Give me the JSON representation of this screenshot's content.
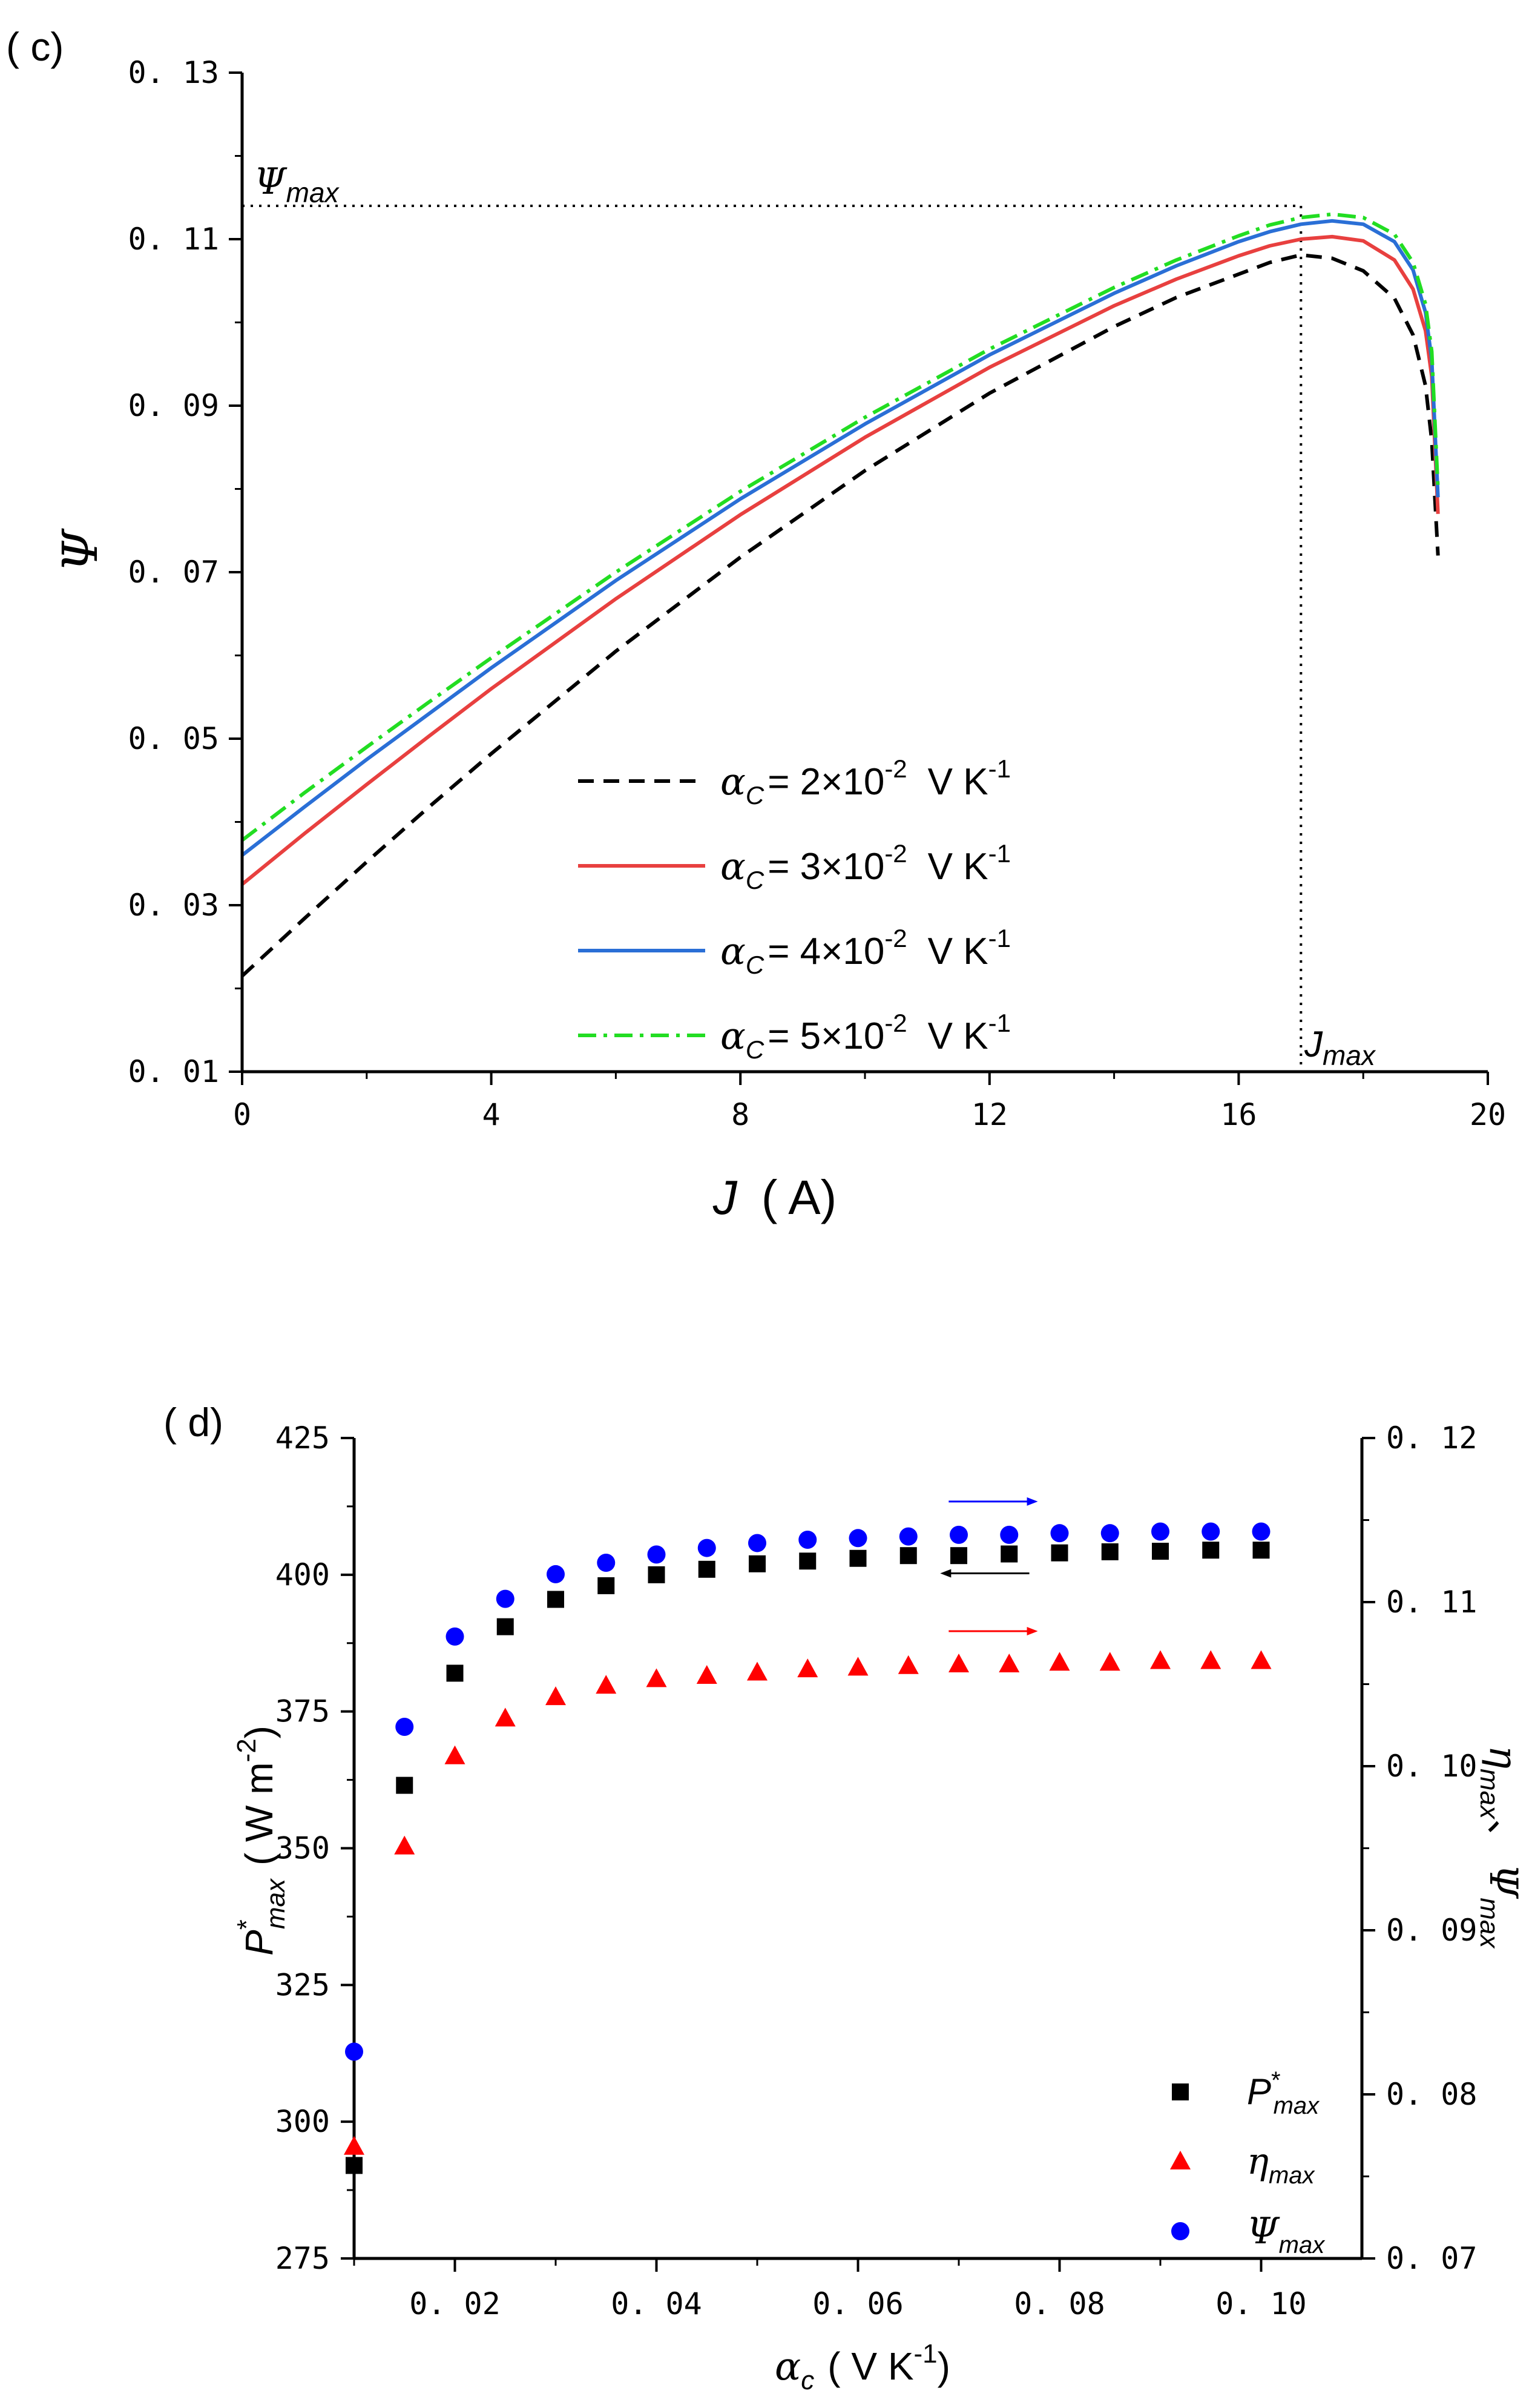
{
  "chart_data": [
    {
      "type": "line",
      "panel": "( c)",
      "title": "",
      "xlabel_sym": "J",
      "xlabel_unit": "( A)",
      "ylabel_sym": "Ψ",
      "xlim": [
        0,
        20
      ],
      "ylim": [
        0.01,
        0.13
      ],
      "xticks": [
        0,
        4,
        8,
        12,
        16,
        20
      ],
      "xtick_labels": [
        "0",
        "4",
        "8",
        "12",
        "16",
        "20"
      ],
      "yticks": [
        0.01,
        0.03,
        0.05,
        0.07,
        0.09,
        0.11,
        0.13
      ],
      "ytick_labels": [
        "0. 01",
        "0. 03",
        "0. 05",
        "0. 07",
        "0. 09",
        "0. 11",
        "0. 13"
      ],
      "annotations": {
        "psi_max": {
          "sym": "Ψ",
          "sub": "max",
          "value": 0.114
        },
        "j_max": {
          "sym": "J",
          "sub": "max",
          "value": 17.0
        }
      },
      "legend_position": "center",
      "series": [
        {
          "name": "α_C = 2×10^-2 V K^-1",
          "sym": "α",
          "sub": "C",
          "text": "= 2×10",
          "exp": "-2",
          "unit": "V K",
          "unit_exp": "-1",
          "color": "#000000",
          "dash": "dash",
          "x": [
            0,
            1,
            2,
            3,
            4,
            6,
            8,
            10,
            12,
            14,
            15,
            16,
            16.5,
            17,
            17.5,
            18,
            18.5,
            18.8,
            19.0,
            19.1,
            19.2
          ],
          "y": [
            0.0215,
            0.0284,
            0.0352,
            0.0418,
            0.0482,
            0.0605,
            0.0718,
            0.0822,
            0.0915,
            0.0995,
            0.103,
            0.1058,
            0.1072,
            0.1081,
            0.1077,
            0.1062,
            0.1029,
            0.0985,
            0.0924,
            0.0858,
            0.072
          ]
        },
        {
          "name": "α_C = 3×10^-2 V K^-1",
          "sym": "α",
          "sub": "C",
          "text": "= 3×10",
          "exp": "-2",
          "unit": "V K",
          "unit_exp": "-1",
          "color": "#e8403f",
          "dash": "solid",
          "x": [
            0,
            1,
            2,
            3,
            4,
            6,
            8,
            10,
            12,
            14,
            15,
            16,
            16.5,
            17,
            17.5,
            18,
            18.5,
            18.8,
            19.0,
            19.1,
            19.2
          ],
          "y": [
            0.0325,
            0.0386,
            0.0445,
            0.0503,
            0.056,
            0.0668,
            0.0769,
            0.0862,
            0.0946,
            0.102,
            0.1052,
            0.108,
            0.1092,
            0.11,
            0.1103,
            0.1098,
            0.1075,
            0.104,
            0.099,
            0.0935,
            0.077
          ]
        },
        {
          "name": "α_C = 4×10^-2 V K^-1",
          "sym": "α",
          "sub": "C",
          "text": "= 4×10",
          "exp": "-2",
          "unit": "V K",
          "unit_exp": "-1",
          "color": "#2a6fd6",
          "dash": "solid",
          "x": [
            0,
            1,
            2,
            3,
            4,
            6,
            8,
            10,
            12,
            14,
            15,
            16,
            16.5,
            17,
            17.5,
            18,
            18.5,
            18.8,
            19.0,
            19.1,
            19.2
          ],
          "y": [
            0.036,
            0.0418,
            0.0475,
            0.053,
            0.0585,
            0.069,
            0.0788,
            0.0878,
            0.0961,
            0.1035,
            0.1068,
            0.1097,
            0.1109,
            0.1118,
            0.1122,
            0.1118,
            0.1097,
            0.1063,
            0.1012,
            0.0955,
            0.079
          ]
        },
        {
          "name": "α_C = 5×10^-2 V K^-1",
          "sym": "α",
          "sub": "C",
          "text": "= 5×10",
          "exp": "-2",
          "unit": "V K",
          "unit_exp": "-1",
          "color": "#22dd22",
          "dash": "dashdot",
          "x": [
            0,
            1,
            2,
            3,
            4,
            6,
            8,
            10,
            12,
            14,
            15,
            16,
            16.5,
            17,
            17.5,
            18,
            18.5,
            18.8,
            19.0,
            19.1,
            19.2
          ],
          "y": [
            0.0378,
            0.0435,
            0.049,
            0.0544,
            0.0597,
            0.07,
            0.0797,
            0.0886,
            0.0968,
            0.1042,
            0.1075,
            0.1104,
            0.1117,
            0.1126,
            0.113,
            0.1126,
            0.1106,
            0.1072,
            0.1022,
            0.0965,
            0.08
          ]
        }
      ]
    },
    {
      "type": "scatter",
      "panel": "( d)",
      "title": "",
      "xlabel_sym": "α",
      "xlabel_sub": "c",
      "xlabel_unit": "( V K",
      "xlabel_unit_exp": "-1",
      "xlabel_close": ")",
      "ylabel_left": {
        "sym": "P",
        "sup": "*",
        "sub": "max",
        "unit": "( W m",
        "unit_exp": "-2",
        "close": ")"
      },
      "ylabel_right": {
        "sym1": "η",
        "sub1": "max",
        "sep": "、",
        "sym2": "Ψ",
        "sub2": "max"
      },
      "xlim": [
        0.01,
        0.11
      ],
      "ylim_left": [
        275,
        425
      ],
      "ylim_right": [
        0.07,
        0.12
      ],
      "xticks": [
        0.02,
        0.04,
        0.06,
        0.08,
        0.1
      ],
      "xtick_labels": [
        "0. 02",
        "0. 04",
        "0. 06",
        "0. 08",
        "0. 10"
      ],
      "yticks_left": [
        275,
        300,
        325,
        350,
        375,
        400,
        425
      ],
      "ytick_labels_left": [
        "275",
        "300",
        "325",
        "350",
        "375",
        "400",
        "425"
      ],
      "yticks_right": [
        0.07,
        0.08,
        0.09,
        0.1,
        0.11,
        0.12
      ],
      "ytick_labels_right": [
        "0. 07",
        "0. 08",
        "0. 09",
        "0. 10",
        "0. 11",
        "0. 12"
      ],
      "legend_position": "bottom-right",
      "x": [
        0.01,
        0.015,
        0.02,
        0.025,
        0.03,
        0.035,
        0.04,
        0.045,
        0.05,
        0.055,
        0.06,
        0.065,
        0.07,
        0.075,
        0.08,
        0.085,
        0.09,
        0.095,
        0.1
      ],
      "series": [
        {
          "name": "P*max",
          "sym": "P",
          "sup": "*",
          "sub": "max",
          "axis": "left",
          "marker": "square",
          "color": "#000000",
          "values": [
            292,
            361.5,
            382,
            390.5,
            395.5,
            398,
            400,
            401,
            402,
            402.5,
            403,
            403.5,
            403.5,
            403.8,
            404,
            404.2,
            404.3,
            404.5,
            404.5
          ]
        },
        {
          "name": "ηmax",
          "sym": "η",
          "sub": "max",
          "axis": "right",
          "marker": "triangle",
          "color": "#ff0000",
          "values": [
            0.0768,
            0.0951,
            0.1006,
            0.1029,
            0.1042,
            0.1049,
            0.1053,
            0.1055,
            0.1057,
            0.1059,
            0.106,
            0.1061,
            0.1062,
            0.1062,
            0.1063,
            0.1063,
            0.1064,
            0.1064,
            0.1064
          ]
        },
        {
          "name": "Ψmax",
          "sym": "Ψ",
          "sub": "max",
          "axis": "right",
          "marker": "circle",
          "color": "#0000ff",
          "values": [
            0.0826,
            0.1024,
            0.1079,
            0.1102,
            0.1117,
            0.1124,
            0.1129,
            0.1133,
            0.1136,
            0.1138,
            0.1139,
            0.114,
            0.1141,
            0.1141,
            0.1142,
            0.1142,
            0.1143,
            0.1143,
            0.1143
          ]
        }
      ],
      "annotations": [
        {
          "type": "arrow",
          "direction": "right",
          "series": "Ψmax",
          "color": "#0000ff",
          "x_from": 0.069,
          "x_to": 0.077
        },
        {
          "type": "arrow",
          "direction": "left",
          "series": "P*max",
          "color": "#000000",
          "x_from": 0.069,
          "x_to": 0.077
        },
        {
          "type": "arrow",
          "direction": "right",
          "series": "ηmax",
          "color": "#ff0000",
          "x_from": 0.069,
          "x_to": 0.077
        }
      ]
    }
  ]
}
